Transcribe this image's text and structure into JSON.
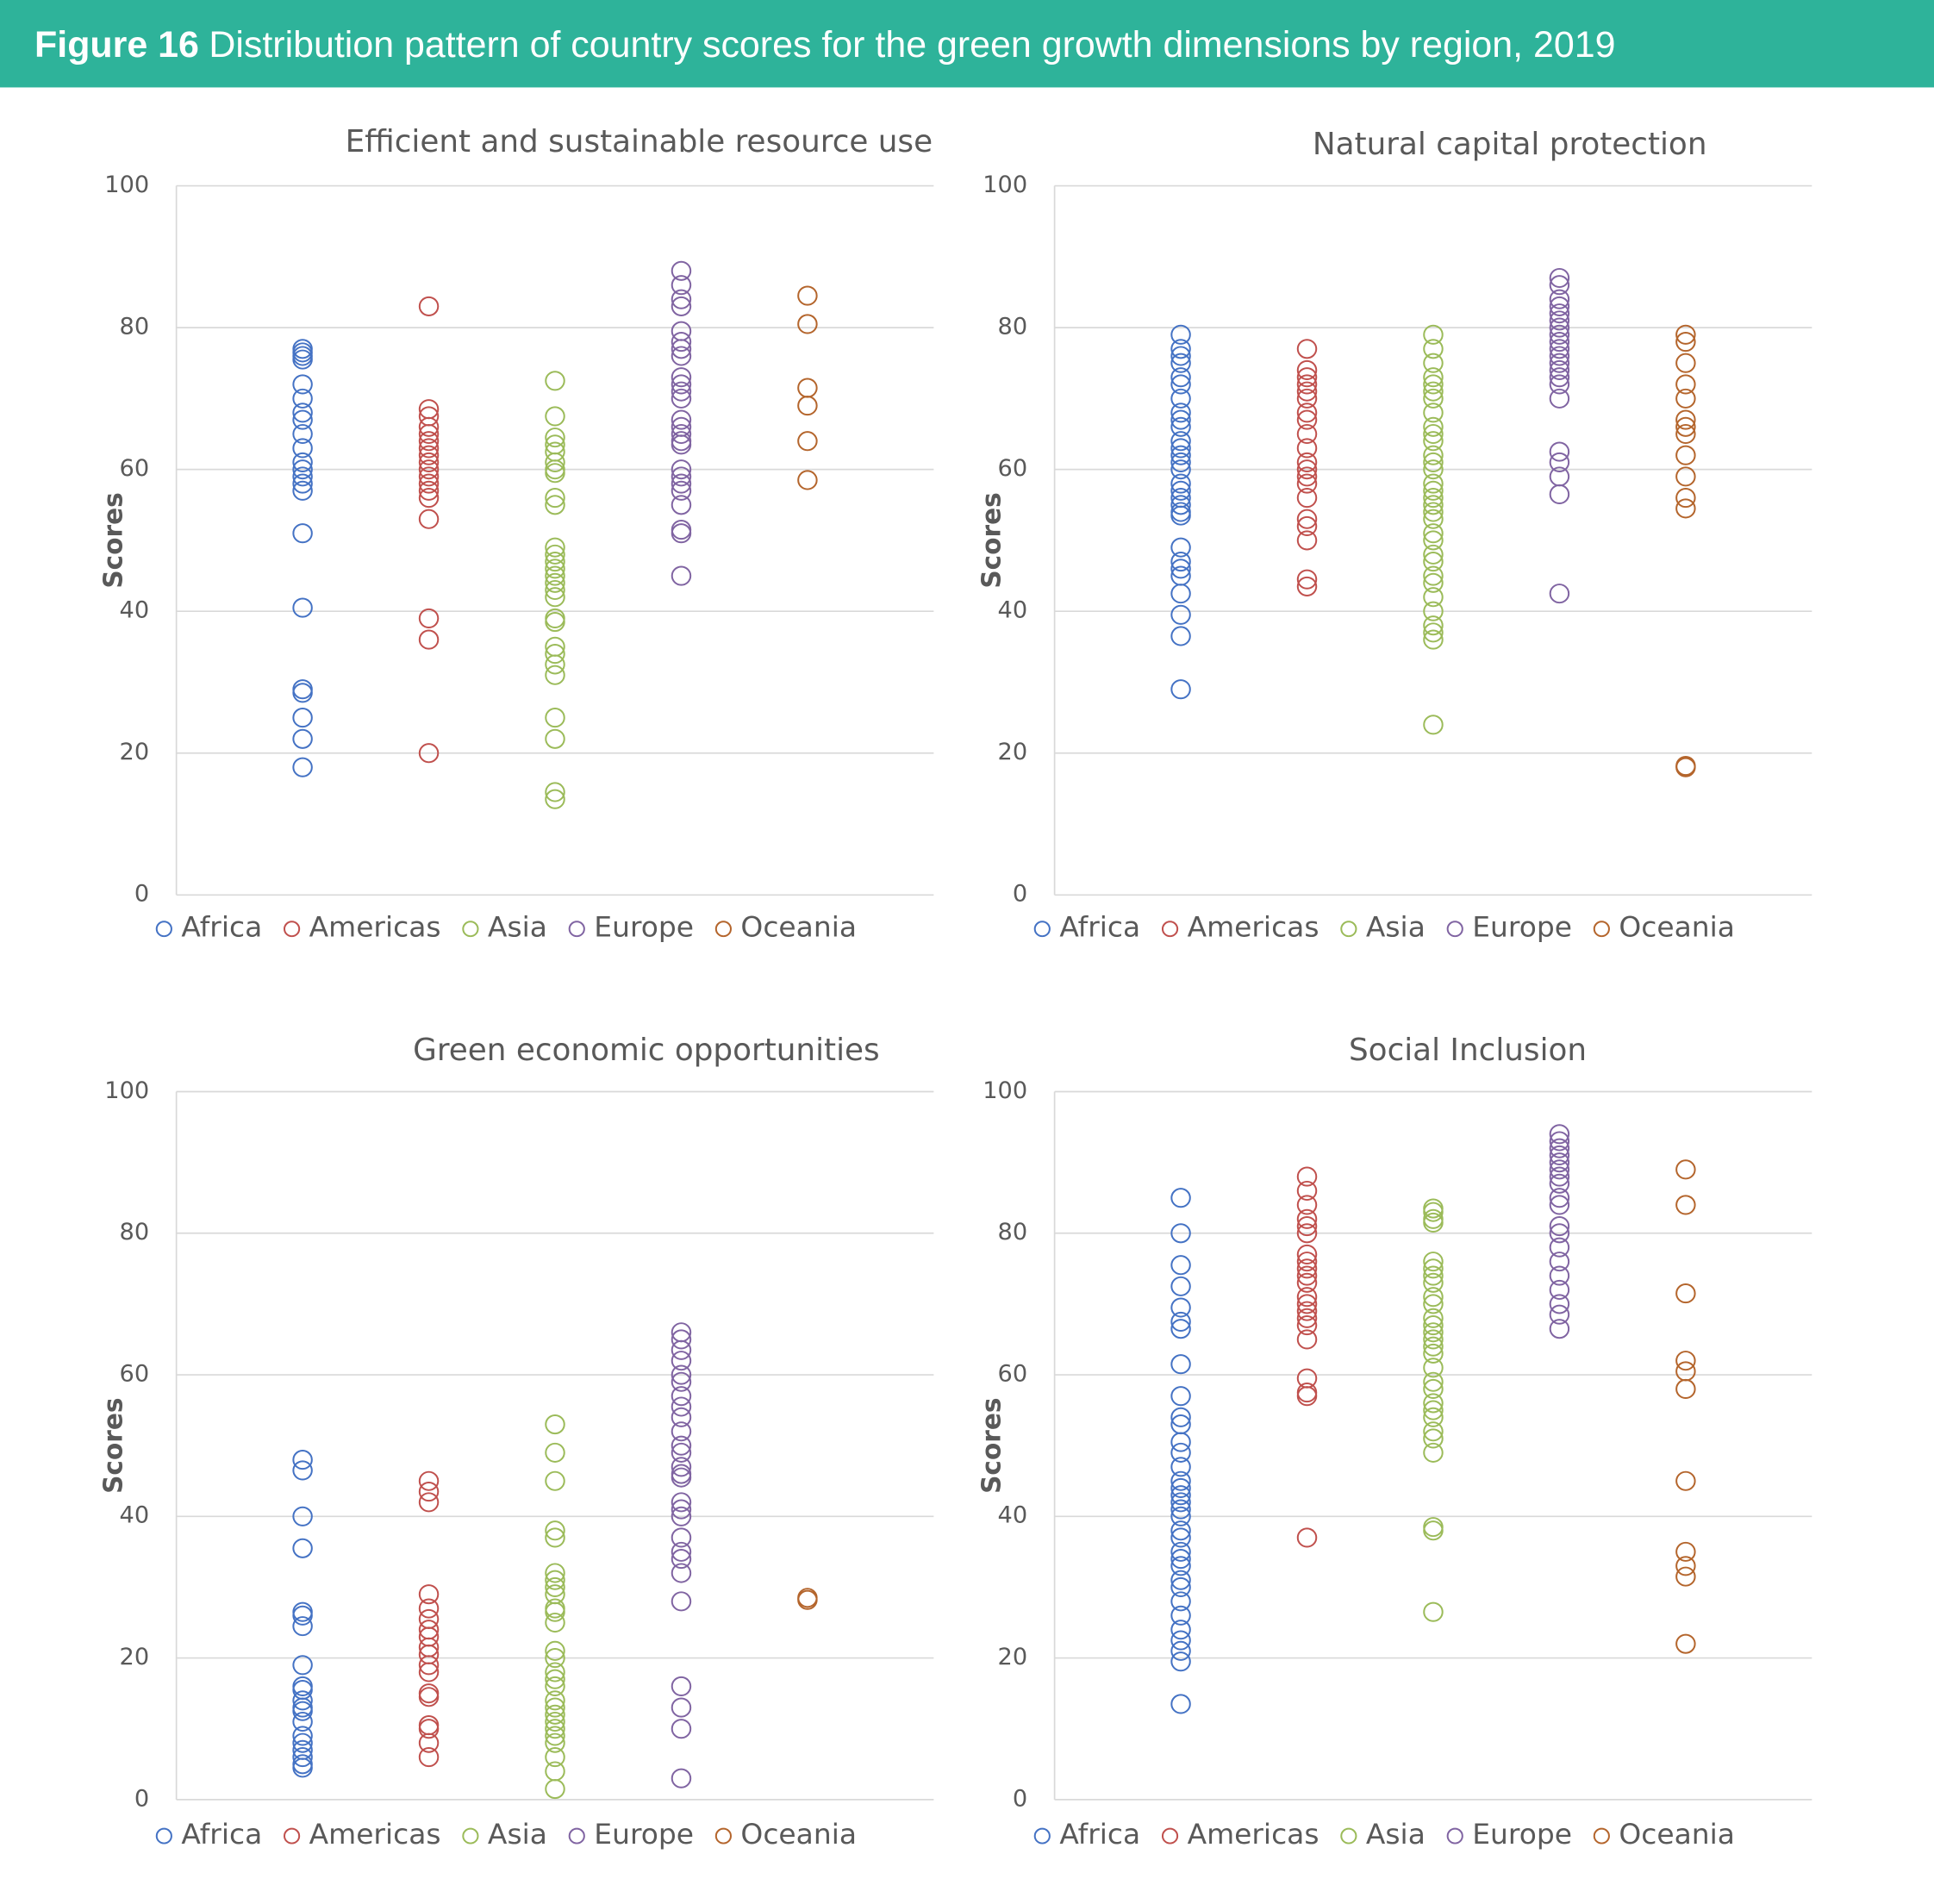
{
  "figure_label": "Figure 16",
  "title": "Distribution pattern of country scores for the green growth dimensions by region, 2019",
  "chart_data": [
    {
      "type": "scatter",
      "title": "Efficient and sustainable resource use",
      "y_label": "Scores",
      "ylim": [
        0,
        100
      ],
      "yticks": [
        0,
        20,
        40,
        60,
        80,
        100
      ],
      "grid": true,
      "legend": "bottom",
      "series": [
        {
          "name": "Africa",
          "color": "#4472c4",
          "values": [
            77,
            76.5,
            76,
            75.5,
            72,
            70,
            68,
            67,
            65,
            63,
            61,
            60,
            59,
            58,
            57,
            51,
            40.5,
            29,
            28.5,
            25,
            22,
            18
          ]
        },
        {
          "name": "Americas",
          "color": "#c0504d",
          "values": [
            83,
            68.5,
            67.5,
            66,
            65,
            64,
            63,
            62,
            61,
            60,
            59,
            58,
            57,
            56,
            53,
            39,
            36,
            20
          ]
        },
        {
          "name": "Asia",
          "color": "#9bbb59",
          "values": [
            72.5,
            67.5,
            64.5,
            63.5,
            62.5,
            61,
            60,
            59.5,
            56,
            55,
            49,
            48,
            47,
            46,
            45,
            44,
            43,
            42,
            39,
            38.5,
            35,
            34,
            32.5,
            31,
            25,
            22,
            14.5,
            13.5
          ]
        },
        {
          "name": "Europe",
          "color": "#8064a2",
          "values": [
            88,
            86,
            84,
            83,
            79.5,
            78,
            77,
            76,
            73,
            72,
            71,
            70,
            67,
            66,
            65,
            64,
            63.5,
            60,
            59,
            58,
            57,
            55,
            51.5,
            51,
            45
          ]
        },
        {
          "name": "Oceania",
          "color": "#b4652c",
          "values": [
            84.5,
            80.5,
            71.5,
            69,
            64,
            58.5
          ]
        }
      ]
    },
    {
      "type": "scatter",
      "title": "Natural capital protection",
      "y_label": "Scores",
      "ylim": [
        0,
        100
      ],
      "yticks": [
        0,
        20,
        40,
        60,
        80,
        100
      ],
      "grid": true,
      "legend": "bottom",
      "series": [
        {
          "name": "Africa",
          "color": "#4472c4",
          "values": [
            79,
            77,
            76,
            75,
            73,
            72,
            70,
            68,
            67,
            66,
            64,
            63,
            62,
            61,
            60,
            58,
            57,
            56,
            55,
            54,
            53.5,
            49,
            47,
            46,
            45,
            42.5,
            39.5,
            36.5,
            29
          ]
        },
        {
          "name": "Americas",
          "color": "#c0504d",
          "values": [
            77,
            74,
            73,
            72,
            71,
            70,
            68,
            67,
            65,
            63,
            61,
            60,
            59,
            58,
            56,
            53,
            52,
            50,
            44.5,
            43.5
          ]
        },
        {
          "name": "Asia",
          "color": "#9bbb59",
          "values": [
            79,
            77,
            75,
            73,
            72,
            71,
            70,
            68,
            66,
            65,
            64,
            62,
            61,
            60,
            58,
            57,
            56,
            55,
            54,
            53,
            51,
            50,
            48,
            47,
            45,
            44,
            42,
            40,
            38,
            37,
            36,
            24
          ]
        },
        {
          "name": "Europe",
          "color": "#8064a2",
          "values": [
            87,
            86,
            84,
            83,
            82,
            81,
            80,
            79,
            78,
            77,
            76,
            75,
            74,
            73,
            72,
            70,
            62.5,
            61,
            59,
            56.5,
            42.5
          ]
        },
        {
          "name": "Oceania",
          "color": "#b4652c",
          "values": [
            79,
            78,
            75,
            72,
            70,
            67,
            66,
            65,
            62,
            59,
            56,
            54.5,
            18.2,
            18
          ]
        }
      ]
    },
    {
      "type": "scatter",
      "title": "Green economic opportunities",
      "y_label": "Scores",
      "ylim": [
        0,
        100
      ],
      "yticks": [
        0,
        20,
        40,
        60,
        80,
        100
      ],
      "grid": true,
      "legend": "bottom",
      "series": [
        {
          "name": "Africa",
          "color": "#4472c4",
          "values": [
            48,
            46.5,
            40,
            35.5,
            26.5,
            26,
            24.5,
            19,
            16,
            15.5,
            14,
            13,
            12.5,
            11,
            9,
            8,
            7,
            6,
            5,
            4.5
          ]
        },
        {
          "name": "Americas",
          "color": "#c0504d",
          "values": [
            45,
            43.5,
            42,
            29,
            27,
            25.5,
            24,
            23,
            21.5,
            20.5,
            19,
            18,
            15,
            14.5,
            10.5,
            10,
            8,
            6
          ]
        },
        {
          "name": "Asia",
          "color": "#9bbb59",
          "values": [
            53,
            49,
            45,
            38,
            37,
            32,
            31,
            30,
            29,
            27,
            26.5,
            25,
            21,
            20,
            18,
            17,
            16,
            14,
            13,
            12,
            11,
            10,
            9,
            8,
            6,
            4,
            1.5
          ]
        },
        {
          "name": "Europe",
          "color": "#8064a2",
          "values": [
            66,
            65,
            63.5,
            62,
            60,
            59,
            57,
            55.5,
            54,
            52,
            50,
            49,
            47,
            46,
            45.5,
            42,
            41,
            40,
            37,
            35,
            34,
            32,
            28,
            16,
            13,
            10,
            3
          ]
        },
        {
          "name": "Oceania",
          "color": "#b4652c",
          "values": [
            28.5,
            28.2
          ]
        }
      ]
    },
    {
      "type": "scatter",
      "title": "Social Inclusion",
      "y_label": "Scores",
      "ylim": [
        0,
        100
      ],
      "yticks": [
        0,
        20,
        40,
        60,
        80,
        100
      ],
      "grid": true,
      "legend": "bottom",
      "series": [
        {
          "name": "Africa",
          "color": "#4472c4",
          "values": [
            85,
            80,
            75.5,
            72.5,
            69.5,
            67.5,
            66.5,
            61.5,
            57,
            54,
            53,
            50.5,
            49,
            47,
            45,
            44,
            43,
            42,
            41,
            40,
            38,
            37,
            35,
            34,
            33,
            31,
            30,
            28,
            26,
            24,
            22.5,
            21,
            19.5,
            13.5
          ]
        },
        {
          "name": "Americas",
          "color": "#c0504d",
          "values": [
            88,
            86,
            84,
            82,
            81,
            80,
            77,
            76,
            75,
            74,
            73,
            71,
            70,
            69,
            68,
            67,
            65,
            59.5,
            57.5,
            57,
            37
          ]
        },
        {
          "name": "Asia",
          "color": "#9bbb59",
          "values": [
            83.5,
            83,
            82,
            81.5,
            76,
            75,
            74,
            73,
            71,
            70,
            68,
            67,
            66,
            65,
            64,
            63,
            61,
            59,
            58,
            56,
            55,
            54,
            52,
            51,
            49,
            38.5,
            38,
            26.5
          ]
        },
        {
          "name": "Europe",
          "color": "#8064a2",
          "values": [
            94,
            93,
            92,
            91,
            90,
            89,
            88,
            87,
            85,
            84,
            81,
            80,
            78,
            76,
            74,
            72,
            70,
            68.5,
            66.5
          ]
        },
        {
          "name": "Oceania",
          "color": "#b4652c",
          "values": [
            89,
            84,
            71.5,
            62,
            60.5,
            58,
            45,
            35,
            33,
            31.5,
            22
          ]
        }
      ]
    }
  ]
}
